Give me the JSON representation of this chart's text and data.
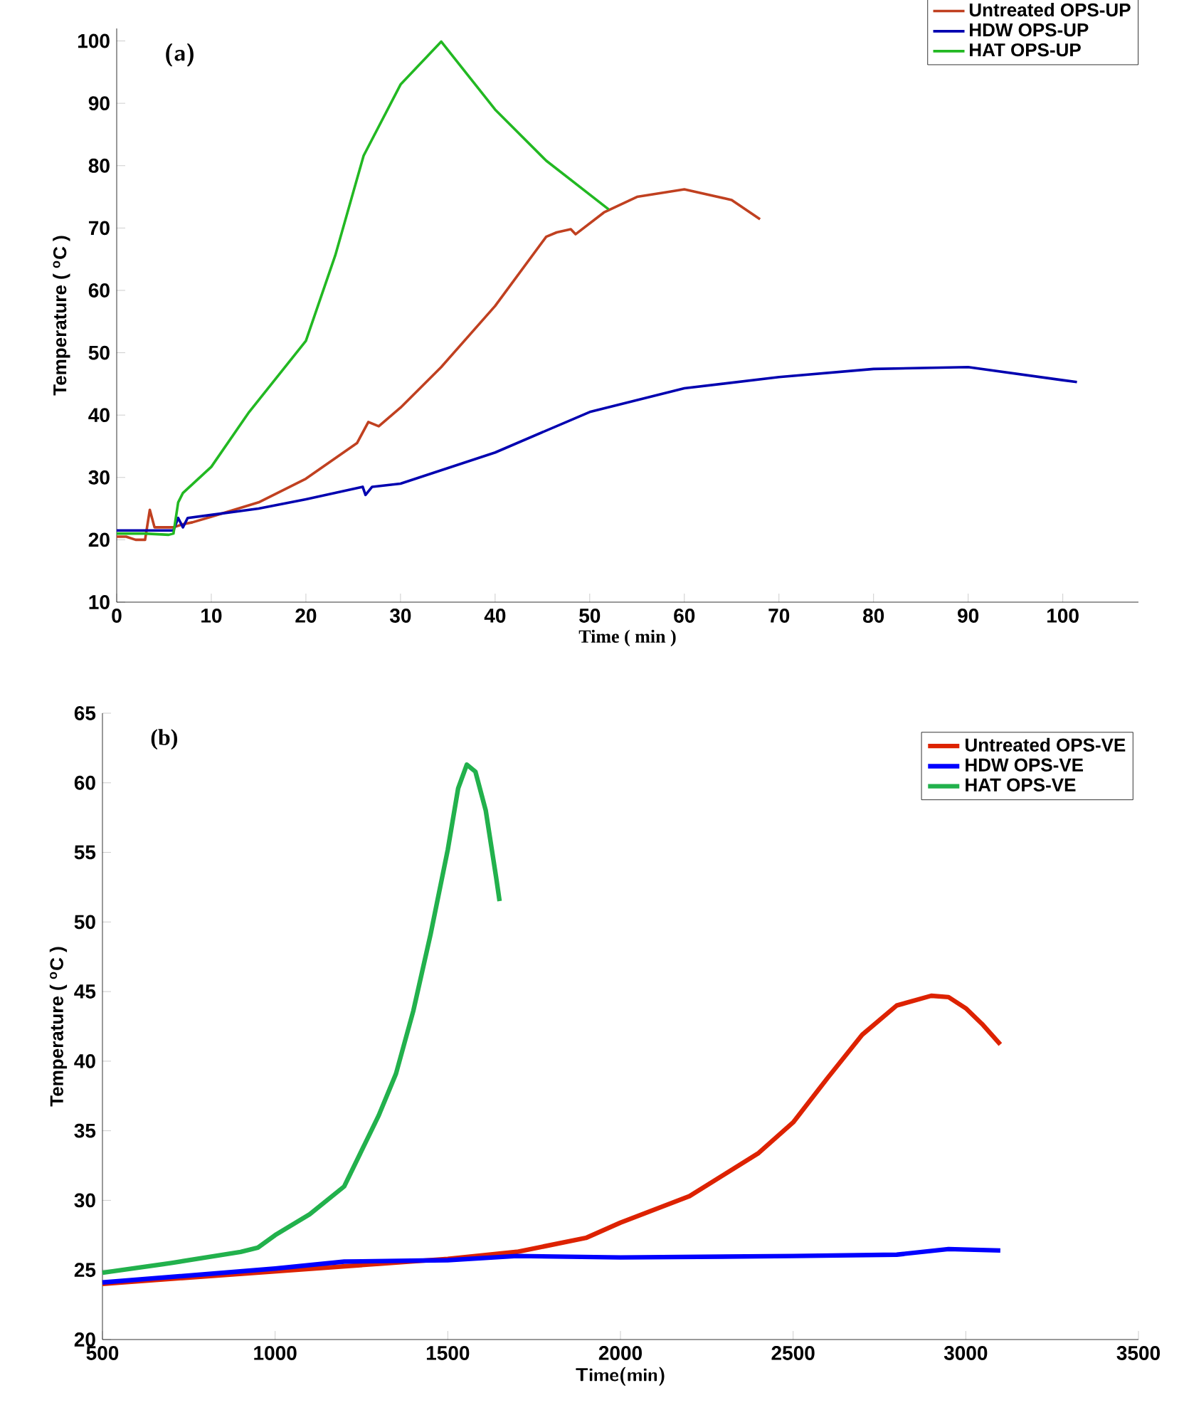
{
  "chart_data": [
    {
      "type": "line",
      "xlabel": "Time ( min )",
      "ylabel": "Temperature ( $^{o}$C )",
      "annotations": [
        "(a)"
      ],
      "legend": "top right",
      "xlim": [
        0,
        108
      ],
      "ylim": [
        10,
        102
      ],
      "xticks": [
        0,
        10,
        20,
        30,
        40,
        50,
        60,
        70,
        80,
        90,
        100
      ],
      "yticks": [
        10,
        20,
        30,
        40,
        50,
        60,
        70,
        80,
        90,
        100
      ],
      "series": [
        {
          "name": "Untreated OPS-UP",
          "color": "#c04020",
          "x": [
            0,
            1,
            2,
            3,
            3.5,
            4,
            5,
            6,
            7,
            8,
            10,
            15,
            20,
            25.4,
            26.6,
            27.7,
            30,
            34.3,
            40,
            45.4,
            46.5,
            48,
            48.5,
            51.5,
            55,
            60,
            65,
            68
          ],
          "values": [
            20.5,
            20.5,
            20,
            20,
            24.8,
            22,
            22,
            22,
            22.5,
            22.8,
            23.7,
            26,
            29.8,
            35.5,
            38.9,
            38.2,
            41.2,
            47.7,
            57.5,
            68.6,
            69.3,
            69.8,
            69,
            72.5,
            75,
            76.2,
            74.5,
            71.4
          ]
        },
        {
          "name": "HDW OPS-UP",
          "color": "#0000b0",
          "x": [
            0,
            3,
            6,
            6.5,
            7,
            7.5,
            10,
            15,
            20,
            26,
            26.3,
            27,
            30,
            40,
            50,
            60,
            70,
            80,
            90,
            100,
            101.5
          ],
          "values": [
            21.5,
            21.5,
            21.5,
            23.5,
            22,
            23.5,
            24,
            25,
            26.5,
            28.5,
            27.2,
            28.5,
            29,
            34,
            40.5,
            44.3,
            46.1,
            47.4,
            47.7,
            45.6,
            45.3
          ]
        },
        {
          "name": "HAT OPS-UP",
          "color": "#22b822",
          "x": [
            0,
            3,
            5.5,
            6,
            6.5,
            7,
            10,
            14,
            20,
            23.1,
            26.1,
            30,
            34.3,
            40,
            45.4,
            52
          ],
          "values": [
            21,
            21,
            20.8,
            21,
            26,
            27.5,
            31.7,
            40.5,
            51.9,
            65.6,
            81.6,
            93,
            99.9,
            89,
            80.8,
            73
          ]
        }
      ]
    },
    {
      "type": "line",
      "xlabel": "Time(min)",
      "ylabel": "Temperature ( $^{o}$C )",
      "annotations": [
        "(b)"
      ],
      "legend": "top right",
      "xlim": [
        500,
        3500
      ],
      "ylim": [
        20,
        65
      ],
      "xticks": [
        500,
        1000,
        1500,
        2000,
        2500,
        3000,
        3500
      ],
      "yticks": [
        20,
        25,
        30,
        35,
        40,
        45,
        50,
        55,
        60,
        65
      ],
      "series": [
        {
          "name": "Untreated OPS-VE",
          "color": "#dd2200",
          "x": [
            500,
            1000,
            1500,
            1700,
            1900,
            2000,
            2200,
            2400,
            2500,
            2600,
            2700,
            2800,
            2900,
            2950,
            3000,
            3050,
            3100
          ],
          "values": [
            24,
            null,
            25.8,
            26.3,
            27.3,
            28.4,
            30.3,
            33.4,
            35.6,
            38.8,
            41.9,
            44,
            44.7,
            44.6,
            43.8,
            42.6,
            41.2
          ]
        },
        {
          "name": "HDW OPS-VE",
          "color": "#0000ff",
          "x": [
            500,
            1000,
            1200,
            1500,
            1700,
            2000,
            2500,
            2800,
            2950,
            3100
          ],
          "values": [
            24.1,
            25.1,
            25.6,
            25.7,
            26,
            25.9,
            26,
            26.1,
            26.5,
            26.4
          ]
        },
        {
          "name": "HAT OPS-VE",
          "color": "#22b14c",
          "x": [
            500,
            700,
            900,
            950,
            1000,
            1100,
            1200,
            1300,
            1350,
            1400,
            1450,
            1500,
            1530,
            1555,
            1580,
            1610,
            1640,
            1650
          ],
          "values": [
            24.8,
            25.5,
            26.3,
            26.6,
            27.5,
            29,
            31,
            36.1,
            39.1,
            43.6,
            49.1,
            55.2,
            59.6,
            61.3,
            60.8,
            58,
            53.2,
            51.5
          ]
        }
      ]
    }
  ]
}
